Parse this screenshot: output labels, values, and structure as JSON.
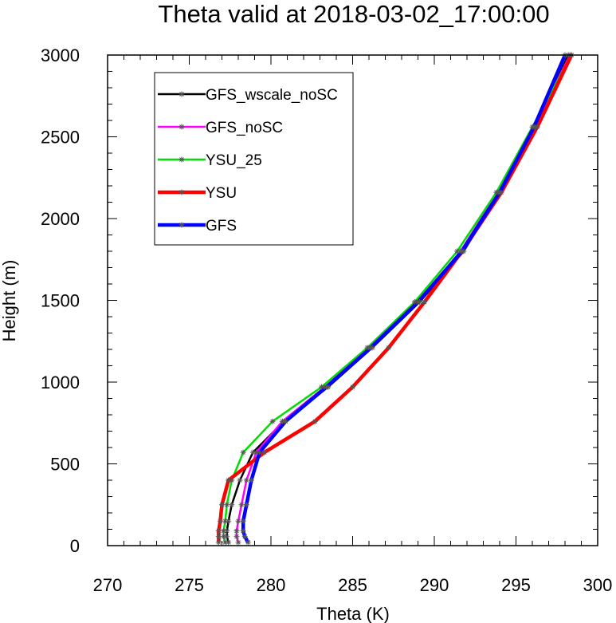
{
  "chart_data": {
    "type": "line",
    "title": "Theta valid at 2018-03-02_17:00:00",
    "xlabel": "Theta (K)",
    "ylabel": "Height (m)",
    "xlim": [
      270,
      300
    ],
    "ylim": [
      0,
      3000
    ],
    "xticks": [
      "270",
      "275",
      "280",
      "285",
      "290",
      "295",
      "300"
    ],
    "yticks": [
      "0",
      "500",
      "1000",
      "1500",
      "2000",
      "2500",
      "3000"
    ],
    "legend_position": "top-left",
    "marker": "asterisk",
    "heights": [
      20,
      55,
      90,
      150,
      250,
      400,
      570,
      760,
      970,
      1210,
      1490,
      1800,
      2160,
      2560,
      3000
    ],
    "series": [
      {
        "name": "GFS_wscale_noSC",
        "color": "#000000",
        "x": [
          277.4,
          277.3,
          277.3,
          277.4,
          277.6,
          278.1,
          278.9,
          280.8,
          283.5,
          286.2,
          289.1,
          291.8,
          294.0,
          296.2,
          298.2
        ]
      },
      {
        "name": "GFS_noSC",
        "color": "#ff00ff",
        "x": [
          278.0,
          277.9,
          277.9,
          278.0,
          278.2,
          278.5,
          279.1,
          280.7,
          283.3,
          286.0,
          289.0,
          291.6,
          293.9,
          296.1,
          298.3
        ]
      },
      {
        "name": "YSU_25",
        "color": "#00dd00",
        "x": [
          277.2,
          277.1,
          277.1,
          277.2,
          277.3,
          277.6,
          278.3,
          280.1,
          283.1,
          285.9,
          288.8,
          291.4,
          293.8,
          296.0,
          298.4
        ]
      },
      {
        "name": "YSU",
        "color": "#ff0000",
        "x": [
          276.8,
          276.8,
          276.8,
          276.9,
          277.0,
          277.4,
          279.6,
          282.7,
          285.0,
          287.2,
          289.4,
          291.7,
          294.1,
          296.3,
          298.4
        ]
      },
      {
        "name": "GFS",
        "color": "#0000ff",
        "x": [
          278.6,
          278.4,
          278.3,
          278.3,
          278.5,
          278.8,
          279.3,
          280.9,
          283.4,
          286.1,
          289.0,
          291.7,
          294.0,
          296.1,
          298.0
        ]
      }
    ]
  }
}
